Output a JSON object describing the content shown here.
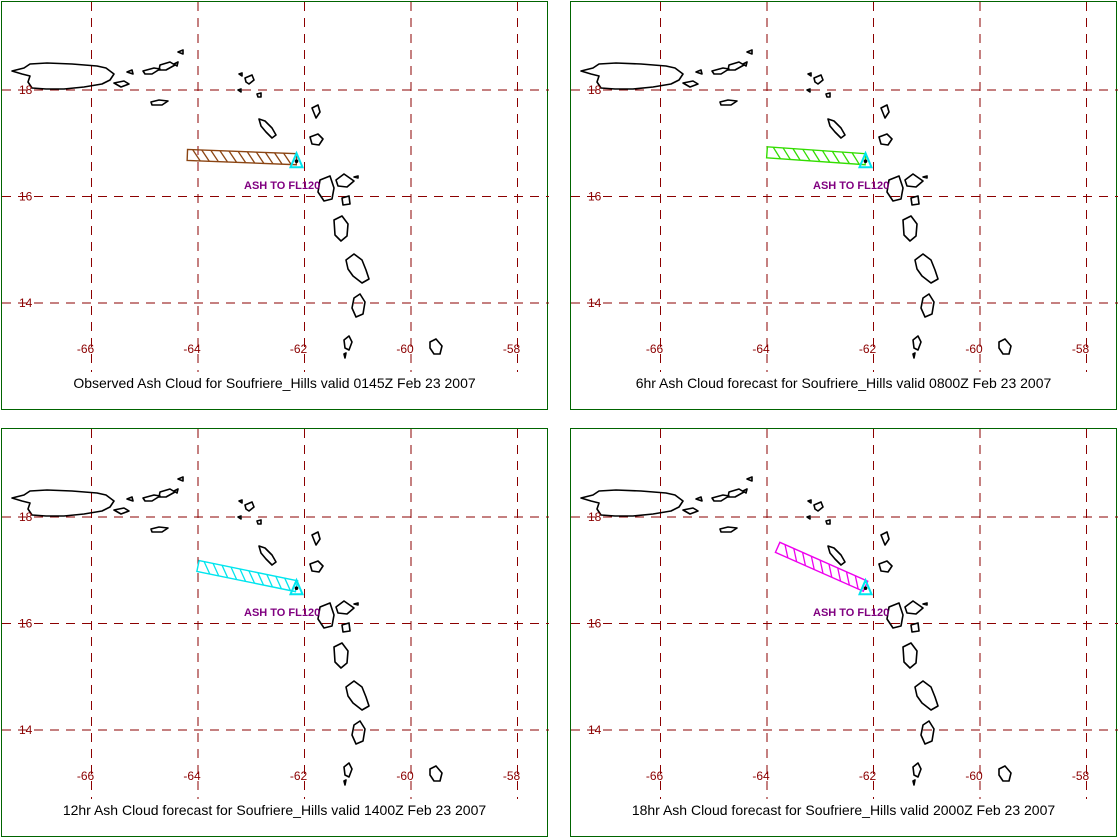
{
  "map": {
    "grid_color": "#8b0000",
    "border_color": "#006400",
    "volcano_marker_color": "#00e5ee",
    "latitudes": [
      18,
      16,
      14
    ],
    "longitudes": [
      -66,
      -64,
      -62,
      -60,
      -58
    ],
    "lat_labels": [
      "18",
      "16",
      "14"
    ],
    "lon_labels": [
      "-66",
      "-64",
      "-62",
      "-60",
      "-58"
    ],
    "ash_label": "ASH TO FL120",
    "volcano": {
      "lon": -62.15,
      "lat": 16.7
    }
  },
  "panels": [
    {
      "caption": "Observed Ash Cloud for Soufriere_Hills valid 0145Z Feb 23 2007",
      "ash_color": "#8b4513",
      "cloud_west_end": {
        "lon": -64.2,
        "lat": 16.78
      }
    },
    {
      "caption": "6hr Ash Cloud forecast for Soufriere_Hills valid 0800Z Feb 23 2007",
      "ash_color": "#33dd00",
      "cloud_west_end": {
        "lon": -64.0,
        "lat": 16.83
      }
    },
    {
      "caption": "12hr Ash Cloud forecast for Soufriere_Hills valid 1400Z Feb 23 2007",
      "ash_color": "#00e5ee",
      "cloud_west_end": {
        "lon": -64.0,
        "lat": 17.08
      }
    },
    {
      "caption": "18hr Ash Cloud forecast for Soufriere_Hills valid 2000Z Feb 23 2007",
      "ash_color": "#ee00ee",
      "cloud_west_end": {
        "lon": -63.8,
        "lat": 17.43
      }
    }
  ]
}
